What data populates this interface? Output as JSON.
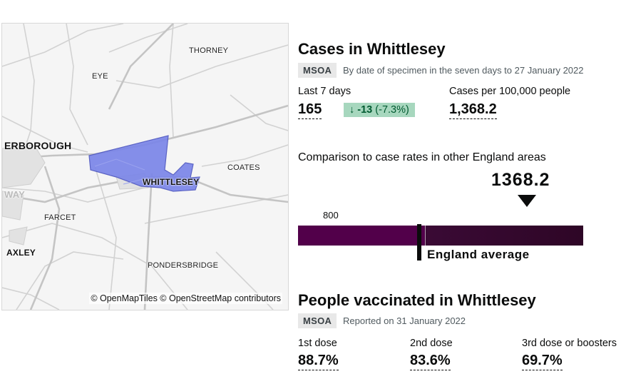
{
  "map": {
    "place_labels": {
      "thorney": "THORNEY",
      "eye": "EYE",
      "peterborough": "ERBOROUGH",
      "coates": "COATES",
      "whittlesey": "WHITTLESEY",
      "way": "WAY",
      "farcet": "FARCET",
      "yaxley": "AXLEY",
      "pondersbridge": "PONDERSBRIDGE"
    },
    "attribution": "© OpenMapTiles © OpenStreetMap contributors",
    "highlight_color": "#7b86e8"
  },
  "cases": {
    "title": "Cases in Whittlesey",
    "tag": "MSOA",
    "period": "By date of specimen in the seven days to 27 January 2022",
    "last7_label": "Last 7 days",
    "last7_value": "165",
    "change_arrow": "↓",
    "change_value": "-13",
    "change_pct": "(-7.3%)",
    "rate_label": "Cases per 100,000 people",
    "rate_value": "1,368.2"
  },
  "comparison": {
    "title": "Comparison to case rates in other England areas",
    "area_value": "1368.2",
    "tick_label": "800",
    "average_label": "England average",
    "scale": {
      "tick": 800,
      "min": 0,
      "max": 1800,
      "area": 1368.2
    },
    "colors": {
      "low": "#52004a",
      "mid": "#3a0a35",
      "high": "#2e0626"
    }
  },
  "vaccinated": {
    "title": "People vaccinated in Whittlesey",
    "tag": "MSOA",
    "reported": "Reported on 31 January 2022",
    "doses": [
      {
        "label": "1st dose",
        "value": "88.7%"
      },
      {
        "label": "2nd dose",
        "value": "83.6%"
      },
      {
        "label": "3rd dose or boosters",
        "value": "69.7%"
      }
    ]
  }
}
